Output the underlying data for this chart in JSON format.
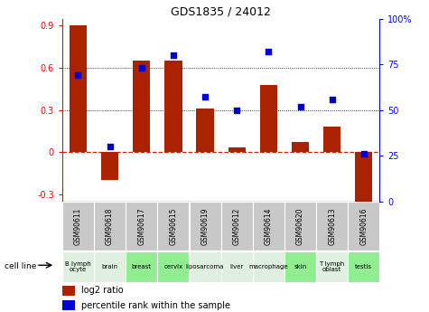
{
  "title": "GDS1835 / 24012",
  "samples": [
    "GSM90611",
    "GSM90618",
    "GSM90617",
    "GSM90615",
    "GSM90619",
    "GSM90612",
    "GSM90614",
    "GSM90620",
    "GSM90613",
    "GSM90616"
  ],
  "cell_lines": [
    "B lymph\nocyte",
    "brain",
    "breast",
    "cervix",
    "liposarcoma",
    "liver",
    "macrophage",
    "skin",
    "T lymph\noblast",
    "testis"
  ],
  "cell_line_colors": [
    "#e0f0e0",
    "#e0f0e0",
    "#90ee90",
    "#90ee90",
    "#e0f0e0",
    "#e0f0e0",
    "#e0f0e0",
    "#90ee90",
    "#e0f0e0",
    "#90ee90"
  ],
  "gsm_box_color": "#c8c8c8",
  "log2_ratio": [
    0.9,
    -0.2,
    0.65,
    0.65,
    0.31,
    0.035,
    0.48,
    0.07,
    0.18,
    -0.37
  ],
  "percentile_rank": [
    69,
    30,
    73,
    80,
    57,
    50,
    82,
    52,
    56,
    26
  ],
  "ylim_left": [
    -0.35,
    0.95
  ],
  "ylim_right": [
    0,
    100
  ],
  "bar_color": "#aa2200",
  "dot_color": "#0000cc",
  "gridline_y": [
    0.3,
    0.6
  ],
  "zero_line_color": "#cc2200",
  "yticks_left": [
    -0.3,
    0.0,
    0.3,
    0.6,
    0.9
  ],
  "ytick_labels_left": [
    "-0.3",
    "0",
    "0.3",
    "0.6",
    "0.9"
  ],
  "yticks_right": [
    0,
    25,
    50,
    75,
    100
  ],
  "ytick_labels_right": [
    "0",
    "25",
    "50",
    "75",
    "100%"
  ]
}
